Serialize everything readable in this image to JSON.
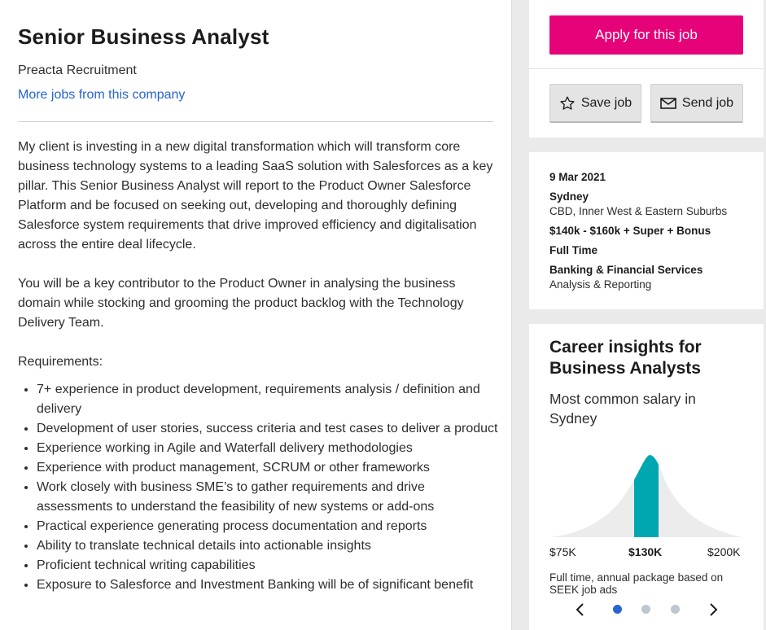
{
  "job": {
    "title": "Senior Business Analyst",
    "company": "Preacta Recruitment",
    "more_jobs_link": "More jobs from this company",
    "description": {
      "paragraph_1": "My client is investing in a new digital transformation which will transform core business technology systems to a leading SaaS solution with Salesforces as a key pillar. This Senior Business Analyst will report to the Product Owner Salesforce Platform and be focused on seeking out, developing and thoroughly defining Salesforce system requirements that drive improved efficiency and digitalisation across the entire deal lifecycle.",
      "paragraph_2": "You will be a key contributor to the Product Owner in analysing the business domain while stocking and grooming the product backlog with the Technology Delivery Team.",
      "requirements_heading": "Requirements:",
      "requirements": [
        "7+ experience in product development, requirements analysis / definition and delivery",
        "Development of user stories, success criteria and test cases to deliver a product",
        "Experience working in Agile and Waterfall delivery methodologies",
        "Experience with product management, SCRUM or other frameworks",
        "Work closely with business SME’s to gather requirements and drive assessments to understand the feasibility of new systems or add-ons",
        "Practical experience generating process documentation and reports",
        "Ability to translate technical details into actionable insights",
        "Proficient technical writing capabilities",
        "Exposure to Salesforce and Investment Banking will be of significant benefit"
      ]
    }
  },
  "actions": {
    "apply_label": "Apply for this job",
    "save_label": "Save job",
    "send_label": "Send job",
    "apply_color": "#e60278"
  },
  "details": {
    "date": "9 Mar 2021",
    "location": "Sydney",
    "area": "CBD, Inner West & Eastern Suburbs",
    "salary": "$140k - $160k + Super + Bonus",
    "work_type": "Full Time",
    "classification": "Banking & Financial Services",
    "sub_classification": "Analysis & Reporting"
  },
  "insights": {
    "title": "Career insights for Business Analysts",
    "subtitle": "Most common salary in Sydney",
    "salary_low": "$75K",
    "salary_common": "$130K",
    "salary_high": "$200K",
    "note": "Full time, annual package based on SEEK job ads",
    "highlight_color": "#00a7b1",
    "carousel": {
      "total_slides": 3,
      "active_index": 0
    }
  }
}
